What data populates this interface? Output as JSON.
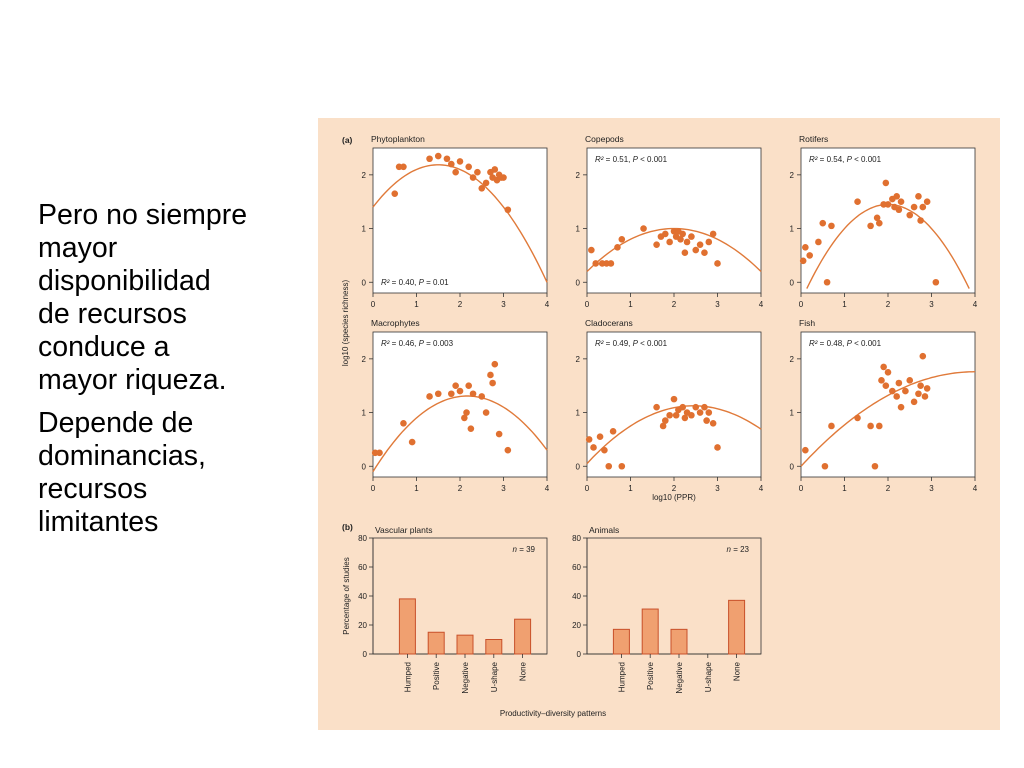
{
  "slide": {
    "paragraph_1": "Pero no siempre\nmayor\ndisponibilidad\nde recursos\nconduce a\nmayor riqueza.",
    "paragraph_2": "Depende de\ndominancias,\nrecursos\nlimitantes"
  },
  "figure": {
    "background_color": "#fae0c8",
    "plot_background": "#ffffff",
    "point_color": "#e07030",
    "curve_color": "#e07a3a",
    "bar_fill": "#f0a070",
    "bar_stroke": "#c8502a",
    "panel_a_label": "(a)",
    "panel_b_label": "(b)",
    "a_ylabel": "log10 (species richness)",
    "a_xlabel": "log10 (PPR)",
    "b_ylabel": "Percentage of studies",
    "b_xlabel": "Productivity–diversity patterns"
  },
  "chart_data": [
    {
      "type": "scatter",
      "title": "Phytoplankton",
      "annotation": "R² = 0.40, P = 0.01",
      "xlim": [
        0,
        4
      ],
      "ylim": [
        -0.2,
        2.5
      ],
      "xticks": [
        "0",
        "1",
        "2",
        "3",
        "4"
      ],
      "yticks": [
        "0",
        "1",
        "2"
      ],
      "fit": [
        -0.35,
        1.05,
        1.4
      ],
      "points": [
        [
          0.5,
          1.65
        ],
        [
          0.6,
          2.15
        ],
        [
          0.7,
          2.15
        ],
        [
          1.3,
          2.3
        ],
        [
          1.5,
          2.35
        ],
        [
          1.7,
          2.3
        ],
        [
          1.8,
          2.2
        ],
        [
          1.9,
          2.05
        ],
        [
          2.0,
          2.25
        ],
        [
          2.2,
          2.15
        ],
        [
          2.3,
          1.95
        ],
        [
          2.4,
          2.05
        ],
        [
          2.5,
          1.75
        ],
        [
          2.6,
          1.85
        ],
        [
          2.7,
          2.05
        ],
        [
          2.75,
          1.95
        ],
        [
          2.8,
          2.1
        ],
        [
          2.85,
          1.9
        ],
        [
          2.9,
          2.0
        ],
        [
          2.95,
          1.95
        ],
        [
          3.0,
          1.95
        ],
        [
          3.1,
          1.35
        ]
      ]
    },
    {
      "type": "scatter",
      "title": "Copepods",
      "annotation": "R² = 0.51, P < 0.001",
      "xlim": [
        0,
        4
      ],
      "ylim": [
        -0.2,
        2.5
      ],
      "xticks": [
        "0",
        "1",
        "2",
        "3",
        "4"
      ],
      "yticks": [
        "0",
        "1",
        "2"
      ],
      "fit": [
        -0.2,
        0.8,
        0.2
      ],
      "points": [
        [
          0.1,
          0.6
        ],
        [
          0.2,
          0.35
        ],
        [
          0.35,
          0.35
        ],
        [
          0.45,
          0.35
        ],
        [
          0.55,
          0.35
        ],
        [
          0.7,
          0.65
        ],
        [
          0.8,
          0.8
        ],
        [
          1.3,
          1.0
        ],
        [
          1.6,
          0.7
        ],
        [
          1.7,
          0.85
        ],
        [
          1.8,
          0.9
        ],
        [
          1.9,
          0.75
        ],
        [
          2.0,
          0.95
        ],
        [
          2.05,
          0.85
        ],
        [
          2.1,
          0.95
        ],
        [
          2.15,
          0.8
        ],
        [
          2.2,
          0.9
        ],
        [
          2.25,
          0.55
        ],
        [
          2.3,
          0.75
        ],
        [
          2.4,
          0.85
        ],
        [
          2.5,
          0.6
        ],
        [
          2.6,
          0.7
        ],
        [
          2.7,
          0.55
        ],
        [
          2.8,
          0.75
        ],
        [
          2.9,
          0.9
        ],
        [
          3.0,
          0.35
        ]
      ]
    },
    {
      "type": "scatter",
      "title": "Rotifers",
      "annotation": "R² = 0.54, P < 0.001",
      "xlim": [
        0,
        4
      ],
      "ylim": [
        -0.2,
        2.5
      ],
      "xticks": [
        "0",
        "1",
        "2",
        "3",
        "4"
      ],
      "yticks": [
        "0",
        "1",
        "2"
      ],
      "fit": [
        -0.45,
        1.8,
        -0.35
      ],
      "points": [
        [
          0.05,
          0.4
        ],
        [
          0.1,
          0.65
        ],
        [
          0.2,
          0.5
        ],
        [
          0.4,
          0.75
        ],
        [
          0.5,
          1.1
        ],
        [
          0.6,
          0.0
        ],
        [
          0.7,
          1.05
        ],
        [
          1.3,
          1.5
        ],
        [
          1.6,
          1.05
        ],
        [
          1.75,
          1.2
        ],
        [
          1.8,
          1.1
        ],
        [
          1.9,
          1.45
        ],
        [
          1.95,
          1.85
        ],
        [
          2.0,
          1.45
        ],
        [
          2.1,
          1.55
        ],
        [
          2.15,
          1.4
        ],
        [
          2.2,
          1.6
        ],
        [
          2.25,
          1.35
        ],
        [
          2.3,
          1.5
        ],
        [
          2.5,
          1.25
        ],
        [
          2.6,
          1.4
        ],
        [
          2.7,
          1.6
        ],
        [
          2.75,
          1.15
        ],
        [
          2.8,
          1.4
        ],
        [
          2.9,
          1.5
        ],
        [
          3.1,
          0.0
        ]
      ]
    },
    {
      "type": "scatter",
      "title": "Macrophytes",
      "annotation": "R² = 0.46, P = 0.003",
      "xlim": [
        0,
        4
      ],
      "ylim": [
        -0.2,
        2.5
      ],
      "xticks": [
        "0",
        "1",
        "2",
        "3",
        "4"
      ],
      "yticks": [
        "0",
        "1",
        "2"
      ],
      "fit": [
        -0.3,
        1.3,
        -0.1
      ],
      "points": [
        [
          0.05,
          0.25
        ],
        [
          0.15,
          0.25
        ],
        [
          0.7,
          0.8
        ],
        [
          0.9,
          0.45
        ],
        [
          1.3,
          1.3
        ],
        [
          1.5,
          1.35
        ],
        [
          1.8,
          1.35
        ],
        [
          1.9,
          1.5
        ],
        [
          2.0,
          1.4
        ],
        [
          2.1,
          0.9
        ],
        [
          2.15,
          1.0
        ],
        [
          2.2,
          1.5
        ],
        [
          2.25,
          0.7
        ],
        [
          2.3,
          1.35
        ],
        [
          2.5,
          1.3
        ],
        [
          2.6,
          1.0
        ],
        [
          2.7,
          1.7
        ],
        [
          2.75,
          1.55
        ],
        [
          2.8,
          1.9
        ],
        [
          2.9,
          0.6
        ],
        [
          3.1,
          0.3
        ]
      ]
    },
    {
      "type": "scatter",
      "title": "Cladocerans",
      "annotation": "R² = 0.49, P < 0.001",
      "xlim": [
        0,
        4
      ],
      "ylim": [
        -0.2,
        2.5
      ],
      "xticks": [
        "0",
        "1",
        "2",
        "3",
        "4"
      ],
      "yticks": [
        "0",
        "1",
        "2"
      ],
      "fit": [
        -0.18,
        0.88,
        0.05
      ],
      "points": [
        [
          0.05,
          0.5
        ],
        [
          0.15,
          0.35
        ],
        [
          0.3,
          0.55
        ],
        [
          0.4,
          0.3
        ],
        [
          0.5,
          0.0
        ],
        [
          0.6,
          0.65
        ],
        [
          0.8,
          0.0
        ],
        [
          1.6,
          1.1
        ],
        [
          1.75,
          0.75
        ],
        [
          1.8,
          0.85
        ],
        [
          1.9,
          0.95
        ],
        [
          2.0,
          1.25
        ],
        [
          2.05,
          0.95
        ],
        [
          2.1,
          1.05
        ],
        [
          2.2,
          1.1
        ],
        [
          2.25,
          0.9
        ],
        [
          2.3,
          1.0
        ],
        [
          2.4,
          0.95
        ],
        [
          2.5,
          1.1
        ],
        [
          2.6,
          1.0
        ],
        [
          2.7,
          1.1
        ],
        [
          2.75,
          0.85
        ],
        [
          2.8,
          1.0
        ],
        [
          2.9,
          0.8
        ],
        [
          3.0,
          0.35
        ]
      ]
    },
    {
      "type": "scatter",
      "title": "Fish",
      "annotation": "R² = 0.48, P < 0.001",
      "xlim": [
        0,
        4
      ],
      "ylim": [
        -0.2,
        2.5
      ],
      "xticks": [
        "0",
        "1",
        "2",
        "3",
        "4"
      ],
      "yticks": [
        "0",
        "1",
        "2"
      ],
      "fit": [
        -0.11,
        0.88,
        0.0
      ],
      "points": [
        [
          0.1,
          0.3
        ],
        [
          0.55,
          0.0
        ],
        [
          0.7,
          0.75
        ],
        [
          1.3,
          0.9
        ],
        [
          1.6,
          0.75
        ],
        [
          1.7,
          0.0
        ],
        [
          1.8,
          0.75
        ],
        [
          1.85,
          1.6
        ],
        [
          1.9,
          1.85
        ],
        [
          1.95,
          1.5
        ],
        [
          2.0,
          1.75
        ],
        [
          2.1,
          1.4
        ],
        [
          2.2,
          1.3
        ],
        [
          2.25,
          1.55
        ],
        [
          2.3,
          1.1
        ],
        [
          2.4,
          1.4
        ],
        [
          2.5,
          1.6
        ],
        [
          2.6,
          1.2
        ],
        [
          2.7,
          1.35
        ],
        [
          2.75,
          1.5
        ],
        [
          2.8,
          2.05
        ],
        [
          2.85,
          1.3
        ],
        [
          2.9,
          1.45
        ]
      ]
    },
    {
      "type": "bar",
      "title": "Vascular plants",
      "annotation": "n = 39",
      "categories": [
        "Humped",
        "Positive",
        "Negative",
        "U-shape",
        "None"
      ],
      "values": [
        38,
        15,
        13,
        10,
        24
      ],
      "ylim": [
        0,
        80
      ],
      "yticks": [
        "0",
        "20",
        "40",
        "60",
        "80"
      ]
    },
    {
      "type": "bar",
      "title": "Animals",
      "annotation": "n = 23",
      "categories": [
        "Humped",
        "Positive",
        "Negative",
        "U-shape",
        "None"
      ],
      "values": [
        17,
        31,
        17,
        0,
        37
      ],
      "ylim": [
        0,
        80
      ],
      "yticks": [
        "0",
        "20",
        "40",
        "60",
        "80"
      ]
    }
  ]
}
